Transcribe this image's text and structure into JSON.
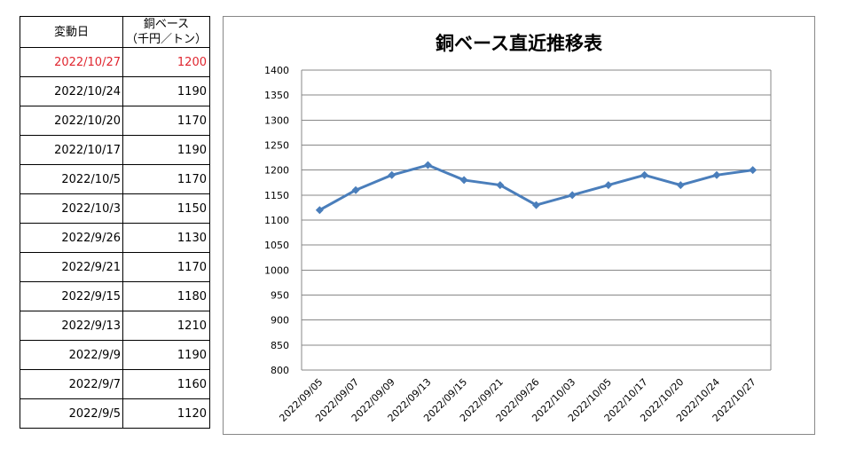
{
  "table": {
    "header_date": "変動日",
    "header_price_line1": "銅ベース",
    "header_price_line2": "（千円／トン）",
    "rows": [
      {
        "date": "2022/10/27",
        "price": "1200"
      },
      {
        "date": "2022/10/24",
        "price": "1190"
      },
      {
        "date": "2022/10/20",
        "price": "1170"
      },
      {
        "date": "2022/10/17",
        "price": "1190"
      },
      {
        "date": "2022/10/5",
        "price": "1170"
      },
      {
        "date": "2022/10/3",
        "price": "1150"
      },
      {
        "date": "2022/9/26",
        "price": "1130"
      },
      {
        "date": "2022/9/21",
        "price": "1170"
      },
      {
        "date": "2022/9/15",
        "price": "1180"
      },
      {
        "date": "2022/9/13",
        "price": "1210"
      },
      {
        "date": "2022/9/9",
        "price": "1190"
      },
      {
        "date": "2022/9/7",
        "price": "1160"
      },
      {
        "date": "2022/9/5",
        "price": "1120"
      }
    ],
    "highlight_color": "#e0262f"
  },
  "chart_data": {
    "type": "line",
    "title": "銅ベース直近推移表",
    "xlabel": "",
    "ylabel": "",
    "categories": [
      "2022/09/05",
      "2022/09/07",
      "2022/09/09",
      "2022/09/13",
      "2022/09/15",
      "2022/09/21",
      "2022/09/26",
      "2022/10/03",
      "2022/10/05",
      "2022/10/17",
      "2022/10/20",
      "2022/10/24",
      "2022/10/27"
    ],
    "series": [
      {
        "values": [
          1120,
          1160,
          1190,
          1210,
          1180,
          1170,
          1130,
          1150,
          1170,
          1190,
          1170,
          1190,
          1200
        ],
        "color": "#4a7ebb",
        "marker": "diamond"
      }
    ],
    "ylim": [
      800,
      1400
    ],
    "yticks": [
      800,
      850,
      900,
      950,
      1000,
      1050,
      1100,
      1150,
      1200,
      1250,
      1300,
      1350,
      1400
    ],
    "grid": true,
    "legend": "none"
  }
}
